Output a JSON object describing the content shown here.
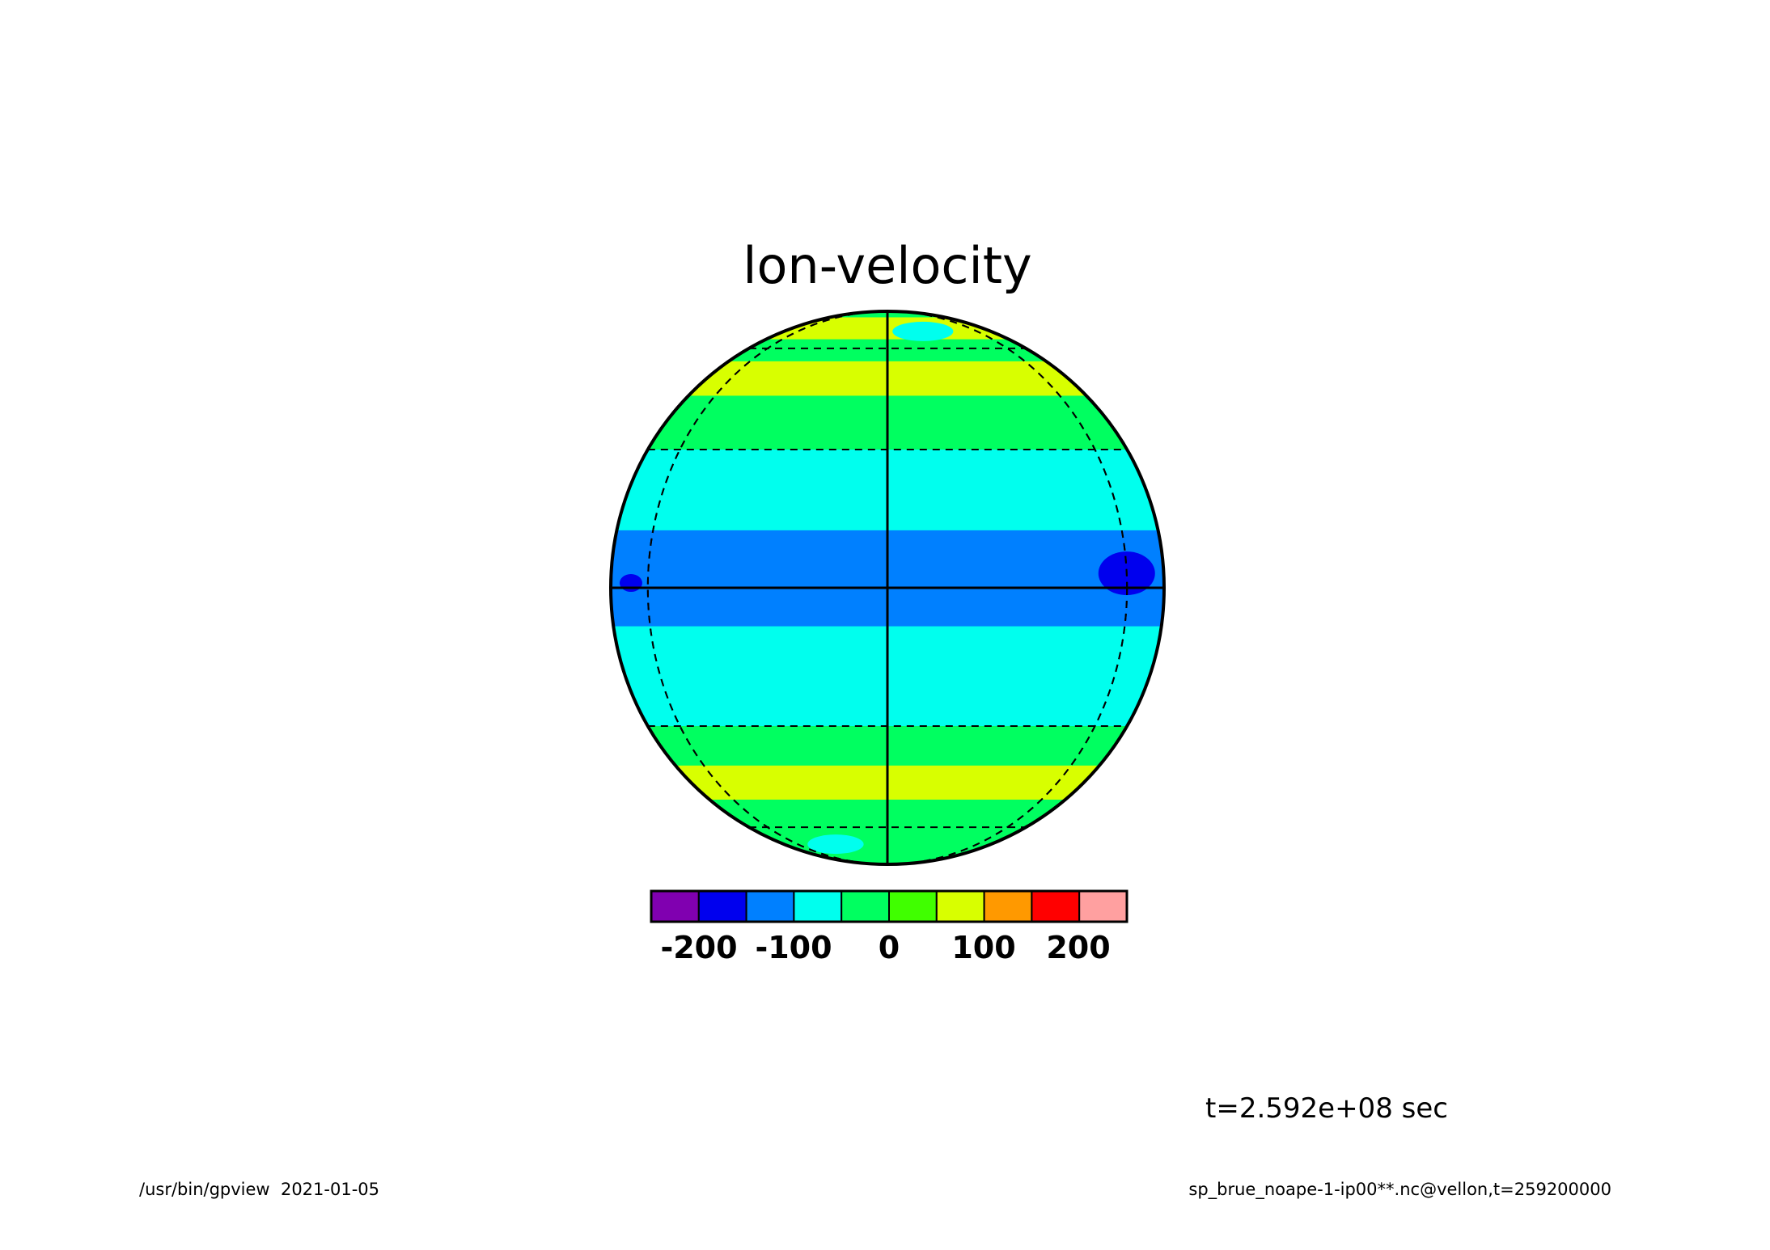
{
  "title": "lon-velocity",
  "time_label": "t=2.592e+08 sec",
  "footer": {
    "left": "/usr/bin/gpview  2021-01-05",
    "right": "sp_brue_noape-1-ip00**.nc@vellon,t=259200000"
  },
  "colorbar": {
    "colors": [
      "#8000b0",
      "#0000ee",
      "#0080ff",
      "#00ffee",
      "#00ff60",
      "#40ff00",
      "#d8ff00",
      "#ff9900",
      "#ff0000",
      "#ffa0a0"
    ],
    "tick_values": [
      "-200",
      "-100",
      "0",
      "100",
      "200"
    ]
  },
  "map": {
    "projection": "orthographic",
    "field_bands": [
      {
        "lat_from": 90,
        "lat_to": 78,
        "level": "0 to 50",
        "color": "#00ff60"
      },
      {
        "lat_from": 78,
        "lat_to": 64,
        "level": "50 to 100",
        "color": "#d8ff00"
      },
      {
        "lat_from": 64,
        "lat_to": 55,
        "level": "0 to 50",
        "color": "#00ff60"
      },
      {
        "lat_from": 55,
        "lat_to": 44,
        "level": "50 to 100",
        "color": "#d8ff00"
      },
      {
        "lat_from": 44,
        "lat_to": 30,
        "level": "0 to 50",
        "color": "#00ff60"
      },
      {
        "lat_from": 30,
        "lat_to": 12,
        "level": "-50 to 0",
        "color": "#00ffee"
      },
      {
        "lat_from": 12,
        "lat_to": -8,
        "level": "-100 to -50",
        "color": "#0080ff"
      },
      {
        "lat_from": -8,
        "lat_to": -30,
        "level": "-50 to 0",
        "color": "#00ffee"
      },
      {
        "lat_from": -30,
        "lat_to": -40,
        "level": "0 to 50",
        "color": "#00ff60"
      },
      {
        "lat_from": -40,
        "lat_to": -50,
        "level": "50 to 100",
        "color": "#d8ff00"
      },
      {
        "lat_from": -50,
        "lat_to": -90,
        "level": "0 to 50",
        "color": "#00ff60"
      }
    ],
    "anomalies": [
      {
        "lon": 60,
        "lat": 3,
        "level": "-150 to -100",
        "color": "#0000ee"
      },
      {
        "lon": -68,
        "lat": 1,
        "level": "-150 to -100",
        "color": "#0000ee"
      },
      {
        "lon": 20,
        "lat": 68,
        "level": "-50 to 0",
        "color": "#00ffee"
      },
      {
        "lon": -30,
        "lat": -68,
        "level": "-50 to 0",
        "color": "#00ffee"
      }
    ],
    "graticule": {
      "parallels": [
        -60,
        -30,
        30,
        60
      ],
      "meridians": [
        -60,
        60
      ]
    }
  }
}
